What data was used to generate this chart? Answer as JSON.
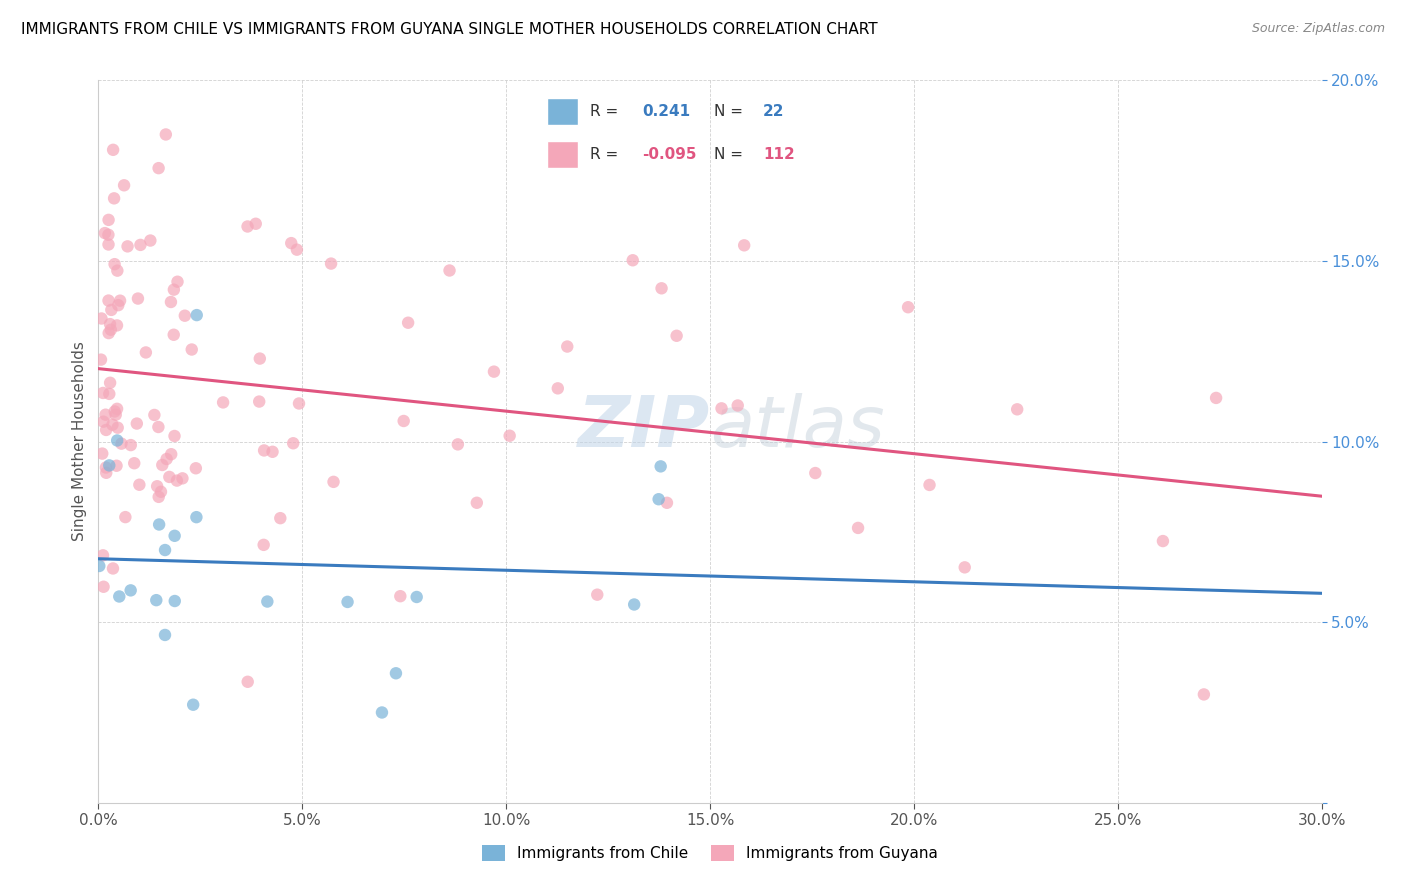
{
  "title": "IMMIGRANTS FROM CHILE VS IMMIGRANTS FROM GUYANA SINGLE MOTHER HOUSEHOLDS CORRELATION CHART",
  "source": "Source: ZipAtlas.com",
  "ylabel_label": "Single Mother Households",
  "legend_label_1": "Immigrants from Chile",
  "legend_label_2": "Immigrants from Guyana",
  "R_chile": 0.241,
  "N_chile": 22,
  "R_guyana": -0.095,
  "N_guyana": 112,
  "color_chile": "#7ab3d8",
  "color_guyana": "#f4a7b9",
  "trend_chile_color": "#3a7bbf",
  "trend_guyana_color": "#e05580",
  "trend_chile_style": "solid",
  "trend_guyana_style": "solid",
  "watermark_color": "#c8d8e8",
  "xlim": [
    0.0,
    0.3
  ],
  "ylim": [
    0.0,
    0.2
  ],
  "ytick_color": "#4a90d9",
  "xtick_color": "#555555",
  "legend_box_color": "#e8f0fa",
  "legend_border_color": "#aabbcc"
}
